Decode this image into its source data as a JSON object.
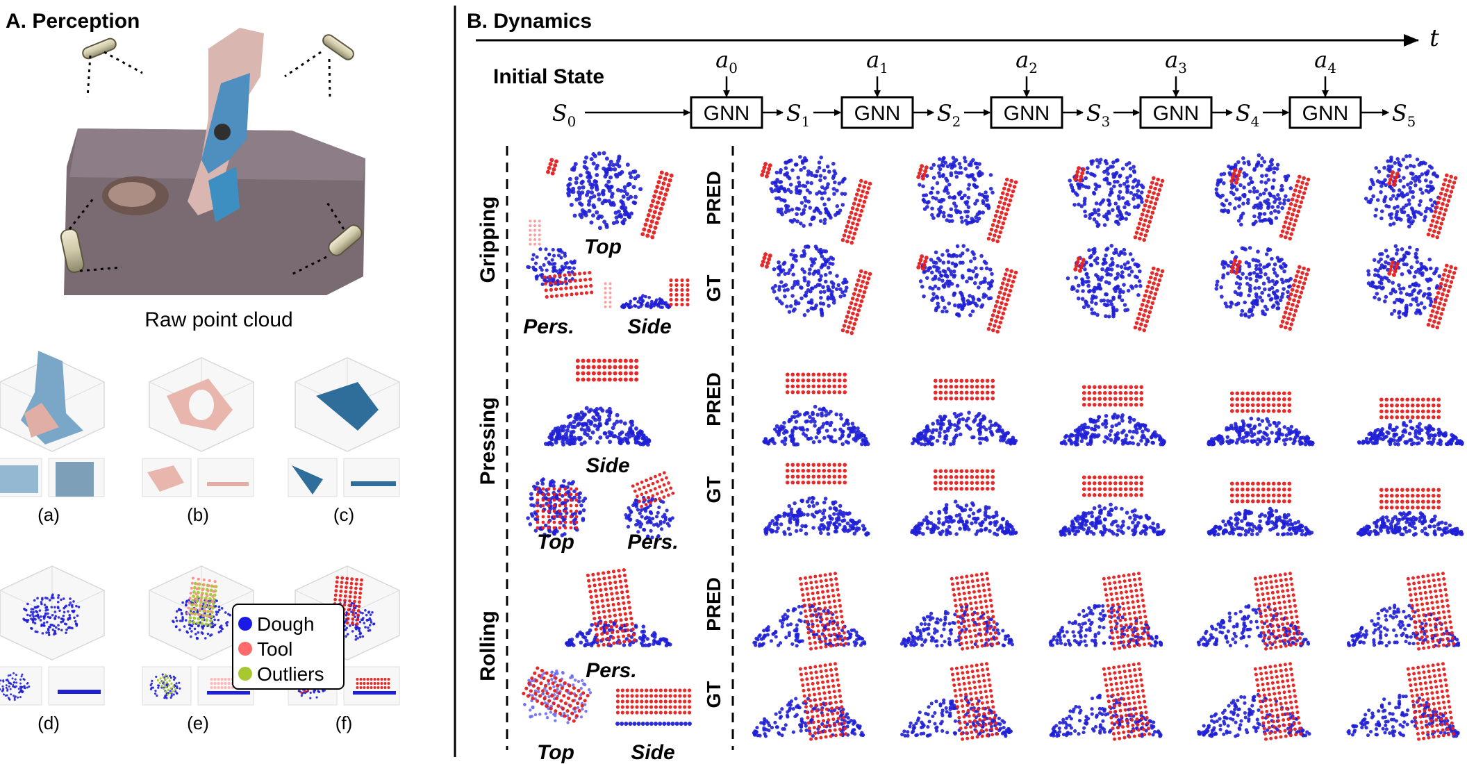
{
  "panel_a": {
    "title": "A. Perception",
    "raw_caption": "Raw point cloud",
    "subpanels": [
      "(a)",
      "(b)",
      "(c)",
      "(d)",
      "(e)",
      "(f)"
    ],
    "legend": [
      {
        "label": "Dough",
        "color": "#1a1ae6"
      },
      {
        "label": "Tool",
        "color": "#ff6b6b"
      },
      {
        "label": "Outliers",
        "color": "#a8c832"
      }
    ]
  },
  "panel_b": {
    "title": "B. Dynamics",
    "time_label": "t",
    "initial_state_label": "Initial State",
    "gnn_label": "GNN",
    "actions": [
      {
        "sym": "a",
        "sub": "0"
      },
      {
        "sym": "a",
        "sub": "1"
      },
      {
        "sym": "a",
        "sub": "2"
      },
      {
        "sym": "a",
        "sub": "3"
      },
      {
        "sym": "a",
        "sub": "4"
      }
    ],
    "states": [
      {
        "sym": "S",
        "sub": "0"
      },
      {
        "sym": "S",
        "sub": "1"
      },
      {
        "sym": "S",
        "sub": "2"
      },
      {
        "sym": "S",
        "sub": "3"
      },
      {
        "sym": "S",
        "sub": "4"
      },
      {
        "sym": "S",
        "sub": "5"
      }
    ],
    "tasks": [
      {
        "name": "Gripping",
        "views": [
          "Top",
          "Pers.",
          "Side"
        ],
        "rows": [
          "PRED",
          "GT"
        ]
      },
      {
        "name": "Pressing",
        "views": [
          "Side",
          "Top",
          "Pers."
        ],
        "rows": [
          "PRED",
          "GT"
        ]
      },
      {
        "name": "Rolling",
        "views": [
          "Pers.",
          "Top",
          "Side"
        ],
        "rows": [
          "PRED",
          "GT"
        ]
      }
    ]
  },
  "colors": {
    "dough": "#1f1fd6",
    "tool": "#e51f1f",
    "outlier": "#a8c832"
  }
}
